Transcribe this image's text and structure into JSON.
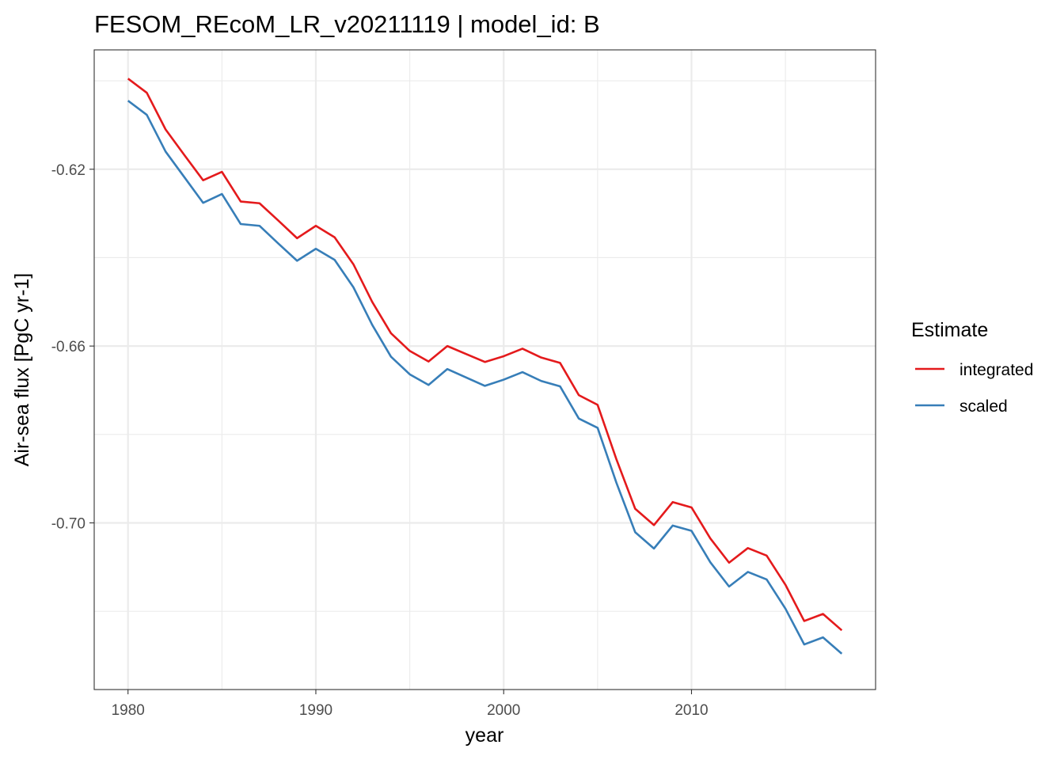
{
  "chart_data": {
    "type": "line",
    "title": "FESOM_REcoM_LR_v20211119 | model_id: B",
    "xlabel": "year",
    "ylabel": "Air-sea flux [PgC yr-1]",
    "xlim": [
      1978.2,
      2019.8
    ],
    "ylim": [
      -0.7377,
      -0.593
    ],
    "x_ticks": [
      1980,
      1990,
      2000,
      2010
    ],
    "x_tick_labels": [
      "1980",
      "1990",
      "2000",
      "2010"
    ],
    "y_ticks": [
      -0.62,
      -0.66,
      -0.7
    ],
    "y_tick_labels": [
      "-0.62",
      "-0.66",
      "-0.70"
    ],
    "x_minor": [
      1985,
      1995,
      2005,
      2015
    ],
    "y_minor": [
      -0.6,
      -0.64,
      -0.68,
      -0.72
    ],
    "grid": true,
    "legend": {
      "title": "Estimate",
      "position": "right"
    },
    "x": [
      1980,
      1981,
      1982,
      1983,
      1984,
      1985,
      1986,
      1987,
      1988,
      1989,
      1990,
      1991,
      1992,
      1993,
      1994,
      1995,
      1996,
      1997,
      1998,
      1999,
      2000,
      2001,
      2002,
      2003,
      2004,
      2005,
      2006,
      2007,
      2008,
      2009,
      2010,
      2011,
      2012,
      2013,
      2014,
      2015,
      2016,
      2017,
      2018
    ],
    "series": [
      {
        "name": "integrated",
        "color": "#e41a1c",
        "values": [
          -0.5995,
          -0.6027,
          -0.611,
          -0.6168,
          -0.6225,
          -0.6206,
          -0.6273,
          -0.6277,
          -0.6316,
          -0.6356,
          -0.6328,
          -0.6354,
          -0.6415,
          -0.65,
          -0.6571,
          -0.6611,
          -0.6635,
          -0.66,
          -0.6618,
          -0.6636,
          -0.6623,
          -0.6606,
          -0.6626,
          -0.6638,
          -0.6711,
          -0.6733,
          -0.6856,
          -0.6968,
          -0.7005,
          -0.6953,
          -0.6965,
          -0.7035,
          -0.709,
          -0.7057,
          -0.7074,
          -0.714,
          -0.7222,
          -0.7206,
          -0.7243
        ]
      },
      {
        "name": "scaled",
        "color": "#377eb8",
        "values": [
          -0.6045,
          -0.6077,
          -0.616,
          -0.6218,
          -0.6276,
          -0.6256,
          -0.6324,
          -0.6328,
          -0.6368,
          -0.6407,
          -0.638,
          -0.6405,
          -0.6467,
          -0.6552,
          -0.6624,
          -0.6664,
          -0.6688,
          -0.6652,
          -0.6671,
          -0.669,
          -0.6676,
          -0.6659,
          -0.6679,
          -0.6691,
          -0.6764,
          -0.6785,
          -0.6909,
          -0.7021,
          -0.7058,
          -0.7006,
          -0.7018,
          -0.7089,
          -0.7144,
          -0.7111,
          -0.7128,
          -0.7194,
          -0.7275,
          -0.7259,
          -0.7296
        ]
      }
    ]
  }
}
